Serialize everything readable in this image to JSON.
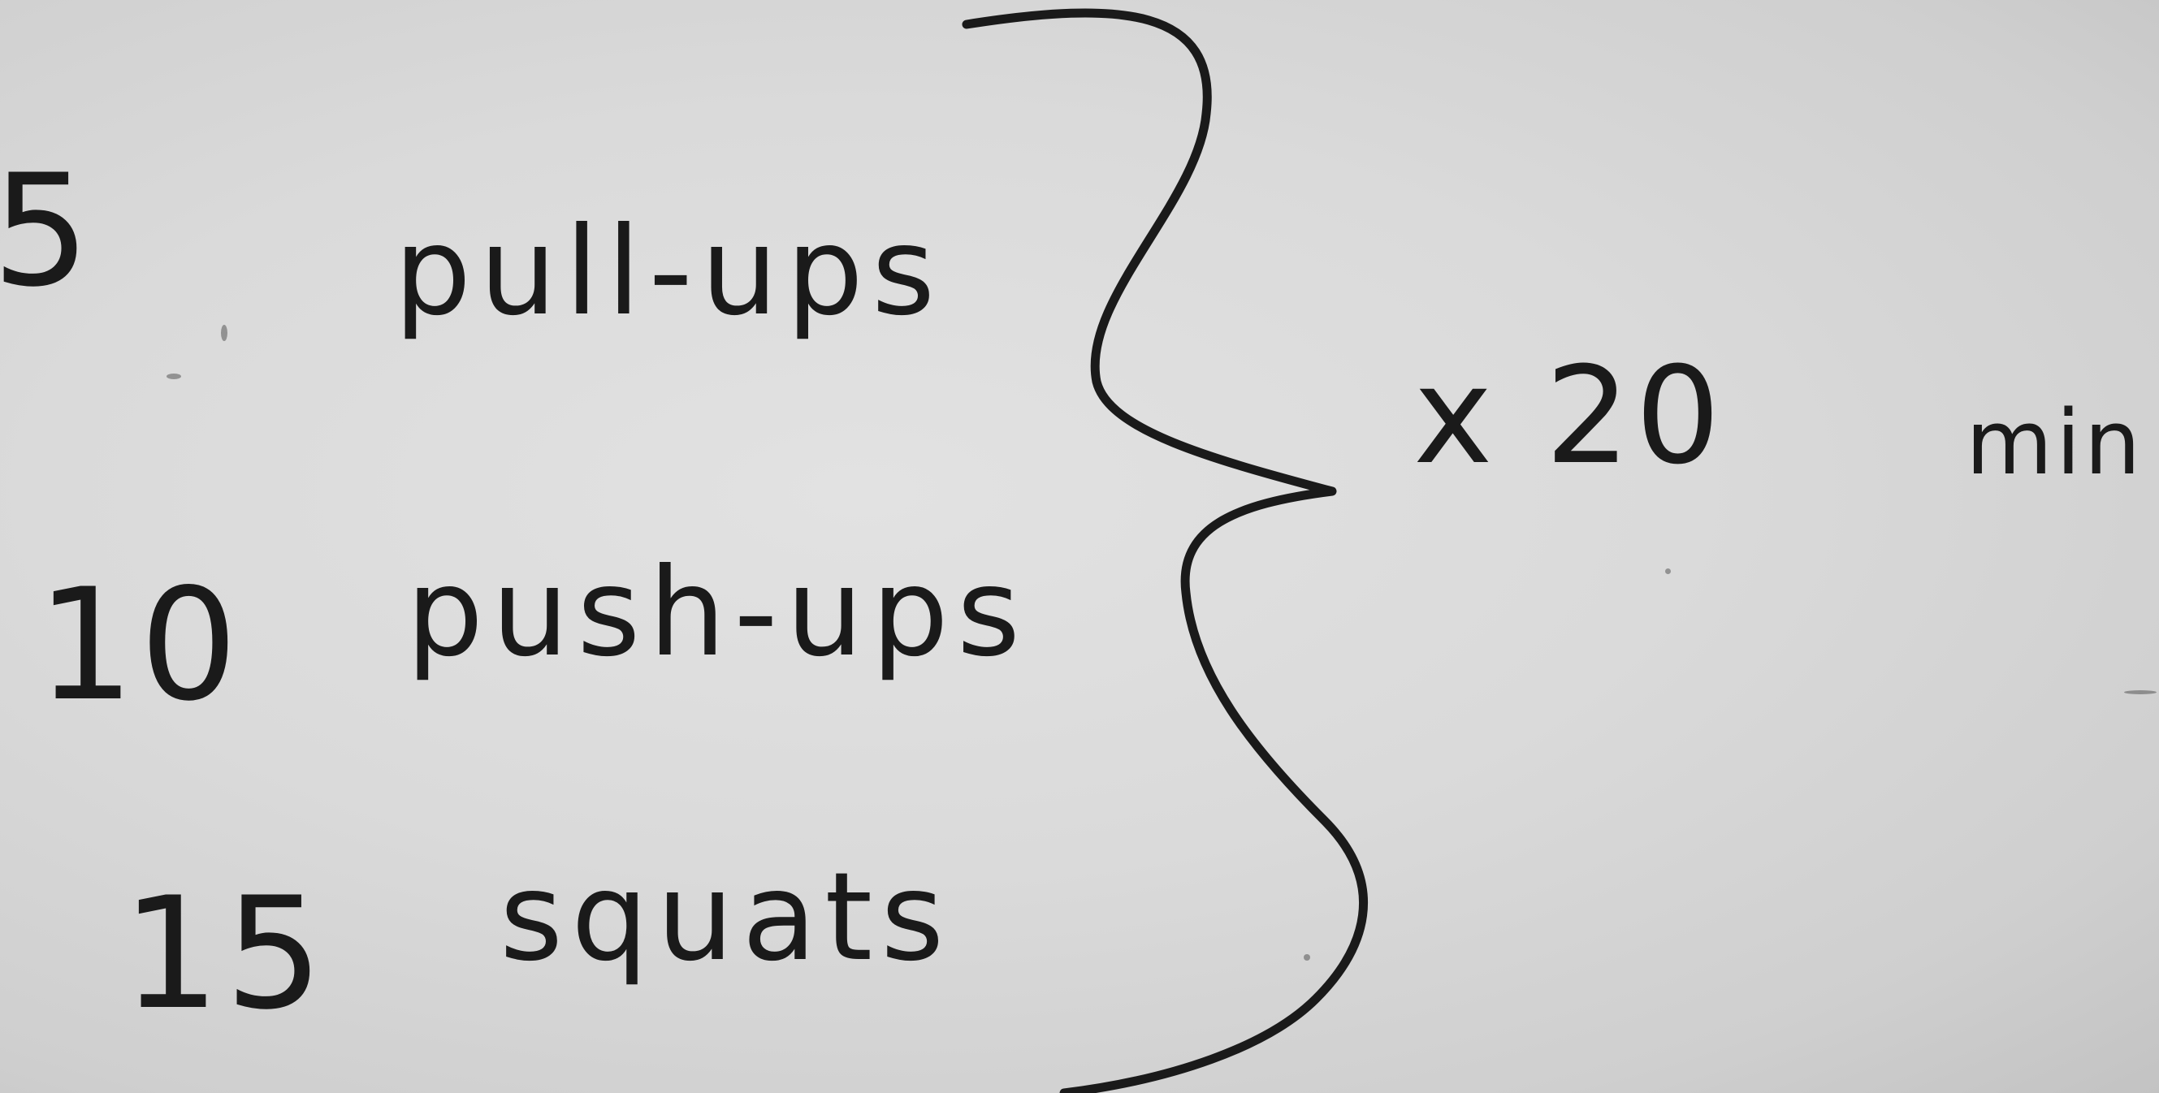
{
  "rows": [
    {
      "count": "5",
      "exercise": "pull-ups"
    },
    {
      "count": "10",
      "exercise": "push-ups"
    },
    {
      "count": "15",
      "exercise": "squats"
    }
  ],
  "multiplier": "x 20",
  "unit": "min",
  "ink_color": "#1a1a1a",
  "board_color": "#dadada"
}
